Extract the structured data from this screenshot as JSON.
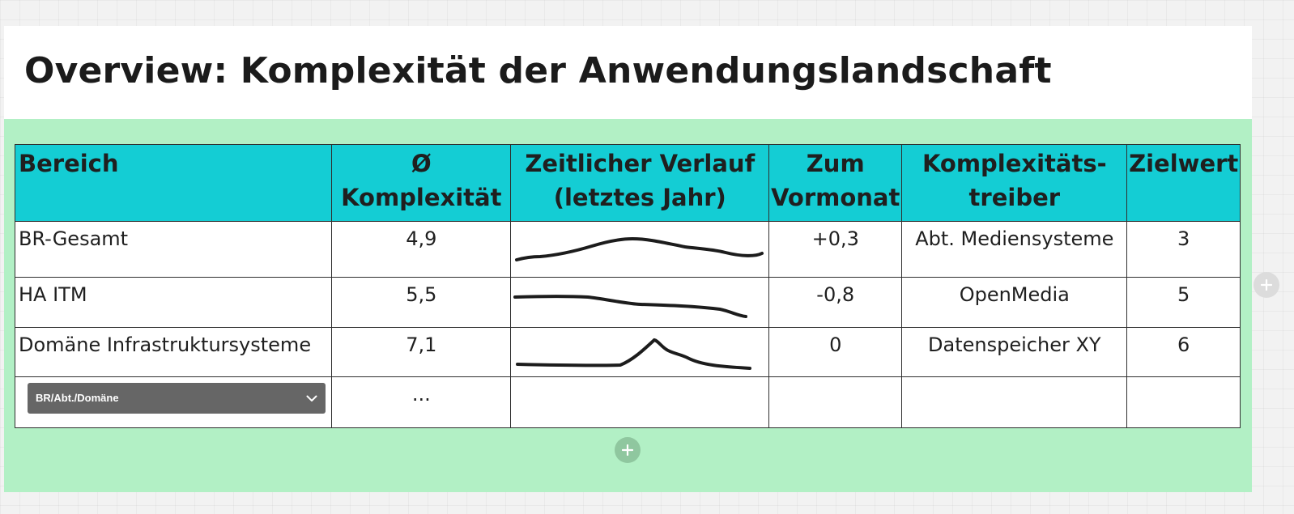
{
  "title": "Overview: Komplexität der Anwendungslandschaft",
  "table": {
    "headers": {
      "bereich": "Bereich",
      "avg_line1": "Ø",
      "avg_line2": "Komplexität",
      "trend_line1": "Zeitlicher Verlauf",
      "trend_line2": "(letztes Jahr)",
      "delta_line1": "Zum",
      "delta_line2": "Vormonat",
      "driver_line1": "Komplexitäts-",
      "driver_line2": "treiber",
      "target": "Zielwert"
    },
    "rows": [
      {
        "bereich": "BR-Gesamt",
        "avg": "4,9",
        "delta": "+0,3",
        "driver": "Abt. Mediensysteme",
        "target": "3"
      },
      {
        "bereich": "HA ITM",
        "avg": "5,5",
        "delta": "-0,8",
        "driver": "OpenMedia",
        "target": "5"
      },
      {
        "bereich": "Domäne Infrastruktursysteme",
        "avg": "7,1",
        "delta": "0",
        "driver": "Datenspeicher XY",
        "target": "6"
      }
    ],
    "last_row": {
      "dropdown_value": "BR/Abt./Domäne",
      "avg": "..."
    }
  },
  "icons": {
    "dropdown": "chevron-down-icon",
    "add_row": "plus-icon",
    "add_column": "plus-icon"
  },
  "colors": {
    "header_bg": "#14cdd4",
    "frame_bg": "#b2f0c5",
    "dropdown_bg": "#666666"
  }
}
